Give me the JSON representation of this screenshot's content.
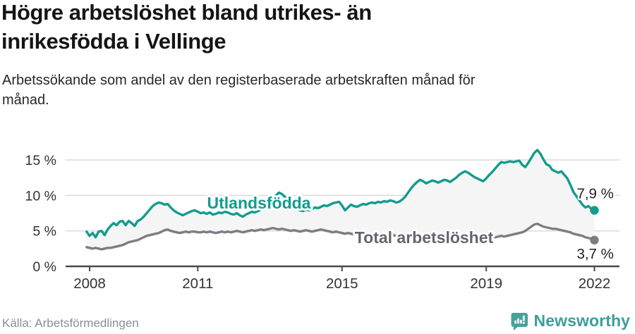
{
  "header": {
    "title_line1": "Högre arbetslöshet bland utrikes- än",
    "title_line2": "inrikesfödda i Vellinge",
    "subtitle_line1": "Arbetssökande som andel av den registerbaserade arbetskraften månad för",
    "subtitle_line2": "månad."
  },
  "chart_data": {
    "type": "line",
    "title": "Högre arbetslöshet bland utrikes- än inrikesfödda i Vellinge",
    "x_start": "2008-01",
    "x_end": "2022-02",
    "x_ticks": [
      2008,
      2011,
      2015,
      2019,
      2022
    ],
    "y_ticks": [
      {
        "label": "0 %",
        "value": 0
      },
      {
        "label": "5 %",
        "value": 5
      },
      {
        "label": "10 %",
        "value": 10
      },
      {
        "label": "15 %",
        "value": 15
      }
    ],
    "ylim": [
      0,
      17.5
    ],
    "grid": "horizontal",
    "legend_position": "inline-labels",
    "fill_between_color": "#f5f5f5",
    "axis_color": "#4a4a4a",
    "grid_color": "#dcdcdc",
    "tick_text_color": "#333333",
    "series": [
      {
        "name": "Utlandsfödda",
        "color": "#129c8d",
        "label_color": "#129c8d",
        "end_label": "7,9 %",
        "end_value": 7.9,
        "values": [
          4.9,
          4.3,
          4.7,
          4.1,
          4.9,
          5.0,
          4.4,
          5.2,
          5.7,
          6.1,
          5.8,
          6.3,
          6.4,
          5.8,
          6.4,
          6.1,
          5.7,
          6.4,
          6.6,
          7.0,
          7.5,
          8.0,
          8.5,
          8.8,
          9.0,
          8.9,
          8.7,
          8.8,
          8.3,
          7.9,
          7.6,
          7.4,
          7.2,
          7.4,
          7.6,
          7.8,
          7.9,
          7.7,
          7.5,
          7.6,
          7.4,
          7.6,
          7.3,
          7.4,
          7.6,
          7.5,
          7.7,
          7.6,
          7.4,
          7.3,
          7.5,
          7.2,
          7.0,
          7.3,
          7.5,
          7.7,
          7.6,
          7.8,
          8.0,
          8.2,
          8.5,
          8.9,
          9.5,
          10.0,
          10.4,
          10.2,
          9.8,
          9.3,
          8.8,
          8.4,
          8.1,
          7.9,
          7.8,
          8.0,
          7.9,
          8.1,
          8.3,
          8.2,
          8.4,
          8.6,
          8.5,
          8.7,
          8.9,
          9.0,
          9.1,
          8.6,
          7.9,
          8.3,
          8.7,
          8.5,
          8.4,
          8.6,
          8.8,
          8.7,
          8.9,
          9.0,
          8.9,
          9.1,
          9.0,
          9.2,
          9.1,
          9.3,
          9.2,
          9.0,
          9.1,
          9.4,
          9.8,
          10.4,
          11.0,
          11.5,
          11.9,
          12.2,
          12.0,
          11.7,
          11.9,
          12.1,
          12.0,
          11.8,
          12.0,
          12.2,
          12.1,
          11.9,
          12.2,
          12.5,
          12.9,
          13.2,
          13.4,
          13.2,
          12.9,
          12.6,
          12.4,
          12.2,
          12.0,
          12.4,
          12.9,
          13.3,
          13.8,
          14.3,
          14.7,
          14.6,
          14.7,
          14.8,
          14.7,
          14.8,
          14.9,
          14.3,
          14.0,
          14.6,
          15.3,
          16.0,
          16.4,
          15.9,
          15.1,
          14.4,
          14.2,
          13.6,
          13.4,
          13.2,
          13.4,
          12.9,
          12.4,
          11.5,
          10.5,
          9.9,
          9.3,
          8.7,
          8.3,
          8.5,
          8.1,
          7.9
        ]
      },
      {
        "name": "Total arbetslöshet",
        "color": "#7b7e83",
        "label_color": "#63666c",
        "end_label": "3,7 %",
        "end_value": 3.7,
        "values": [
          2.7,
          2.6,
          2.5,
          2.6,
          2.5,
          2.4,
          2.5,
          2.6,
          2.6,
          2.7,
          2.8,
          2.9,
          3.0,
          3.2,
          3.4,
          3.5,
          3.6,
          3.7,
          3.9,
          4.1,
          4.3,
          4.4,
          4.5,
          4.6,
          4.7,
          4.9,
          5.1,
          5.2,
          5.0,
          4.9,
          4.8,
          4.7,
          4.8,
          4.9,
          4.8,
          4.9,
          4.9,
          4.8,
          4.8,
          4.9,
          4.8,
          4.9,
          4.8,
          4.7,
          4.8,
          4.9,
          4.8,
          4.9,
          4.8,
          4.9,
          5.0,
          4.9,
          4.8,
          4.9,
          5.0,
          5.1,
          5.0,
          5.1,
          5.2,
          5.1,
          5.2,
          5.3,
          5.4,
          5.3,
          5.2,
          5.3,
          5.2,
          5.1,
          5.0,
          5.1,
          5.0,
          4.9,
          5.0,
          5.1,
          5.0,
          4.9,
          5.0,
          5.1,
          5.2,
          5.1,
          5.0,
          4.9,
          4.8,
          4.9,
          4.8,
          4.7,
          4.6,
          4.7,
          4.6,
          4.5,
          4.6,
          4.5,
          4.4,
          4.5,
          4.4,
          4.5,
          4.4,
          4.5,
          4.4,
          4.3,
          4.4,
          4.5,
          4.4,
          4.3,
          4.4,
          4.3,
          4.2,
          4.3,
          4.2,
          4.3,
          4.4,
          4.3,
          4.2,
          4.3,
          4.4,
          4.3,
          4.2,
          4.3,
          4.2,
          4.3,
          4.2,
          4.1,
          4.2,
          4.1,
          4.0,
          4.1,
          4.2,
          4.1,
          4.0,
          4.1,
          4.0,
          4.1,
          4.1,
          4.2,
          4.3,
          4.2,
          4.1,
          4.2,
          4.3,
          4.2,
          4.3,
          4.4,
          4.5,
          4.6,
          4.7,
          4.8,
          5.0,
          5.3,
          5.6,
          5.9,
          6.0,
          5.8,
          5.6,
          5.5,
          5.4,
          5.3,
          5.3,
          5.2,
          5.1,
          5.0,
          4.9,
          4.8,
          4.6,
          4.5,
          4.4,
          4.3,
          4.1,
          4.0,
          3.9,
          3.7
        ]
      }
    ]
  },
  "footer": {
    "source": "Källa: Arbetsförmedlingen",
    "brand": "Newsworthy",
    "brand_color": "#3d9e98"
  }
}
